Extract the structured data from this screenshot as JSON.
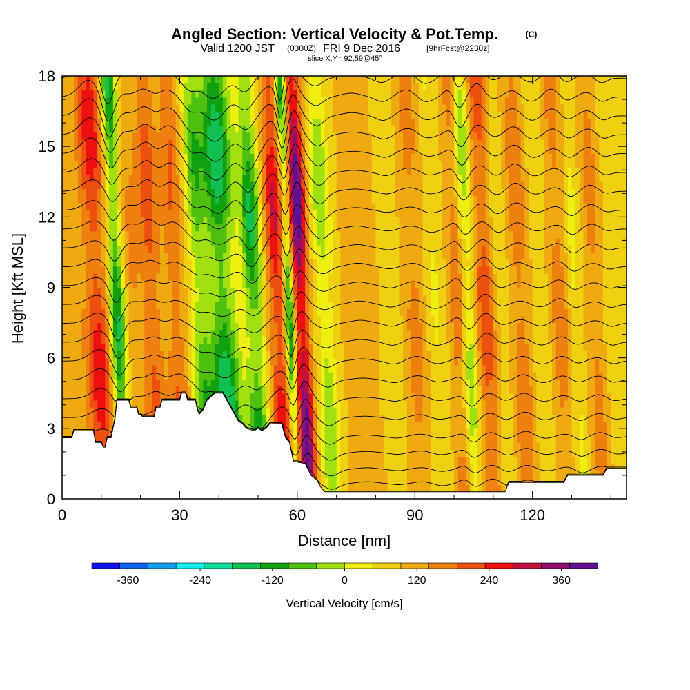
{
  "title": {
    "main": "Angled Section: Vertical Velocity & Pot.Temp.",
    "mark": "(C)",
    "valid_a": "Valid 1200 JST",
    "valid_utc": "(0300Z)",
    "valid_b": "FRI 9 Dec 2016",
    "fcst": "[9hrFcst@2230z]",
    "slice": "slice X,Y= 92,59@45°"
  },
  "chart_data": {
    "type": "heatmap",
    "xlabel": "Distance [nm]",
    "ylabel": "Height [Kft MSL]",
    "xlim": [
      0,
      144
    ],
    "ylim": [
      0,
      18
    ],
    "x_ticks": [
      0,
      30,
      60,
      90,
      120
    ],
    "y_ticks": [
      0,
      3,
      6,
      9,
      12,
      15,
      18
    ],
    "x_tick_labels": [
      "0",
      "30",
      "60",
      "90",
      "120"
    ],
    "y_tick_labels": [
      "0",
      "3",
      "6",
      "9",
      "12",
      "15",
      "18"
    ],
    "colorbar": {
      "label": "Vertical Velocity [cm/s]",
      "min": -420,
      "max": 420,
      "step": 40,
      "tick_values": [
        -360,
        -240,
        -120,
        0,
        120,
        240,
        360
      ],
      "tick_labels": [
        "-360",
        "-240",
        "-120",
        "0",
        "120",
        "240",
        "360"
      ],
      "colors": [
        "#1010ee",
        "#1060ee",
        "#10a0ee",
        "#10eeee",
        "#10dd99",
        "#10c050",
        "#10a010",
        "#50c010",
        "#a0e010",
        "#eeee10",
        "#eed010",
        "#eeaa10",
        "#ee8010",
        "#ee5010",
        "#ee1010",
        "#c01040",
        "#901070",
        "#601090"
      ]
    },
    "terrain_kft": [
      [
        0,
        2.6
      ],
      [
        2.5,
        2.6
      ],
      [
        3,
        2.9
      ],
      [
        8,
        2.9
      ],
      [
        8.5,
        2.4
      ],
      [
        10,
        2.4
      ],
      [
        10.5,
        2.2
      ],
      [
        11,
        2.2
      ],
      [
        11.5,
        2.6
      ],
      [
        12.5,
        2.6
      ],
      [
        13,
        3.0
      ],
      [
        13.5,
        3.4
      ],
      [
        14,
        4.2
      ],
      [
        17,
        4.2
      ],
      [
        17.5,
        3.9
      ],
      [
        19,
        3.9
      ],
      [
        19.5,
        3.6
      ],
      [
        20,
        3.6
      ],
      [
        20.5,
        3.5
      ],
      [
        23.5,
        3.5
      ],
      [
        24,
        3.9
      ],
      [
        25,
        3.9
      ],
      [
        25.5,
        4.2
      ],
      [
        30,
        4.2
      ],
      [
        30.5,
        4.5
      ],
      [
        31.5,
        4.5
      ],
      [
        32,
        4.2
      ],
      [
        34,
        4.2
      ],
      [
        34.5,
        3.8
      ],
      [
        35,
        3.6
      ],
      [
        36,
        3.8
      ],
      [
        37,
        4.2
      ],
      [
        39,
        4.5
      ],
      [
        41,
        4.5
      ],
      [
        42,
        4.2
      ],
      [
        43,
        3.9
      ],
      [
        44,
        3.6
      ],
      [
        45,
        3.3
      ],
      [
        46,
        3.2
      ],
      [
        47,
        3.0
      ],
      [
        49,
        2.9
      ],
      [
        50,
        3.0
      ],
      [
        51,
        2.9
      ],
      [
        52,
        3.0
      ],
      [
        53,
        3.2
      ],
      [
        56,
        3.2
      ],
      [
        57,
        2.6
      ],
      [
        58,
        2.4
      ],
      [
        59,
        1.6
      ],
      [
        62,
        1.5
      ],
      [
        63.5,
        1.0
      ],
      [
        65,
        0.8
      ],
      [
        66,
        0.5
      ],
      [
        67,
        0.3
      ],
      [
        113,
        0.3
      ],
      [
        114,
        0.7
      ],
      [
        128,
        0.7
      ],
      [
        129,
        1.0
      ],
      [
        138,
        1.0
      ],
      [
        139,
        1.3
      ],
      [
        144,
        1.3
      ]
    ],
    "updraft_bands": [
      {
        "x": 11,
        "w": 3.5,
        "amp": 150
      },
      {
        "x": 16,
        "w": 2.0,
        "amp": -230
      },
      {
        "x": 20,
        "w": 2.5,
        "amp": 50
      },
      {
        "x": 25,
        "w": 2.5,
        "amp": 110
      },
      {
        "x": 31,
        "w": 2.5,
        "amp": 90
      },
      {
        "x": 37,
        "w": 2.5,
        "amp": -140
      },
      {
        "x": 43,
        "w": 4.0,
        "amp": -240
      },
      {
        "x": 51,
        "w": 2.5,
        "amp": -210
      },
      {
        "x": 57,
        "w": 2.5,
        "amp": 170
      },
      {
        "x": 60,
        "w": 1.2,
        "amp": -220
      },
      {
        "x": 63,
        "w": 2.0,
        "amp": 280
      },
      {
        "x": 69,
        "w": 2.5,
        "amp": -120
      },
      {
        "x": 78,
        "w": 3.5,
        "amp": 40
      },
      {
        "x": 86,
        "w": 2.5,
        "amp": -40
      },
      {
        "x": 92,
        "w": 3.0,
        "amp": 60
      },
      {
        "x": 97,
        "w": 2.5,
        "amp": -50
      },
      {
        "x": 103,
        "w": 2.0,
        "amp": 90
      },
      {
        "x": 105.5,
        "w": 2.0,
        "amp": -120
      },
      {
        "x": 110,
        "w": 2.5,
        "amp": 120
      },
      {
        "x": 114,
        "w": 2.0,
        "amp": -40
      },
      {
        "x": 119,
        "w": 2.5,
        "amp": 80
      },
      {
        "x": 124,
        "w": 2.5,
        "amp": -40
      },
      {
        "x": 129,
        "w": 2.5,
        "amp": 70
      },
      {
        "x": 133,
        "w": 2.0,
        "amp": -60
      },
      {
        "x": 138,
        "w": 2.5,
        "amp": 60
      },
      {
        "x": 142,
        "w": 2.0,
        "amp": -40
      }
    ],
    "isentrope_base_kft": [
      0.6,
      1.2,
      1.9,
      2.6,
      3.4,
      4.2,
      5.0,
      5.8,
      6.6,
      7.4,
      8.2,
      9.0,
      9.8,
      10.6,
      11.4,
      12.2,
      13.0,
      13.8,
      14.6,
      15.4,
      16.2,
      17.0,
      17.8
    ]
  }
}
